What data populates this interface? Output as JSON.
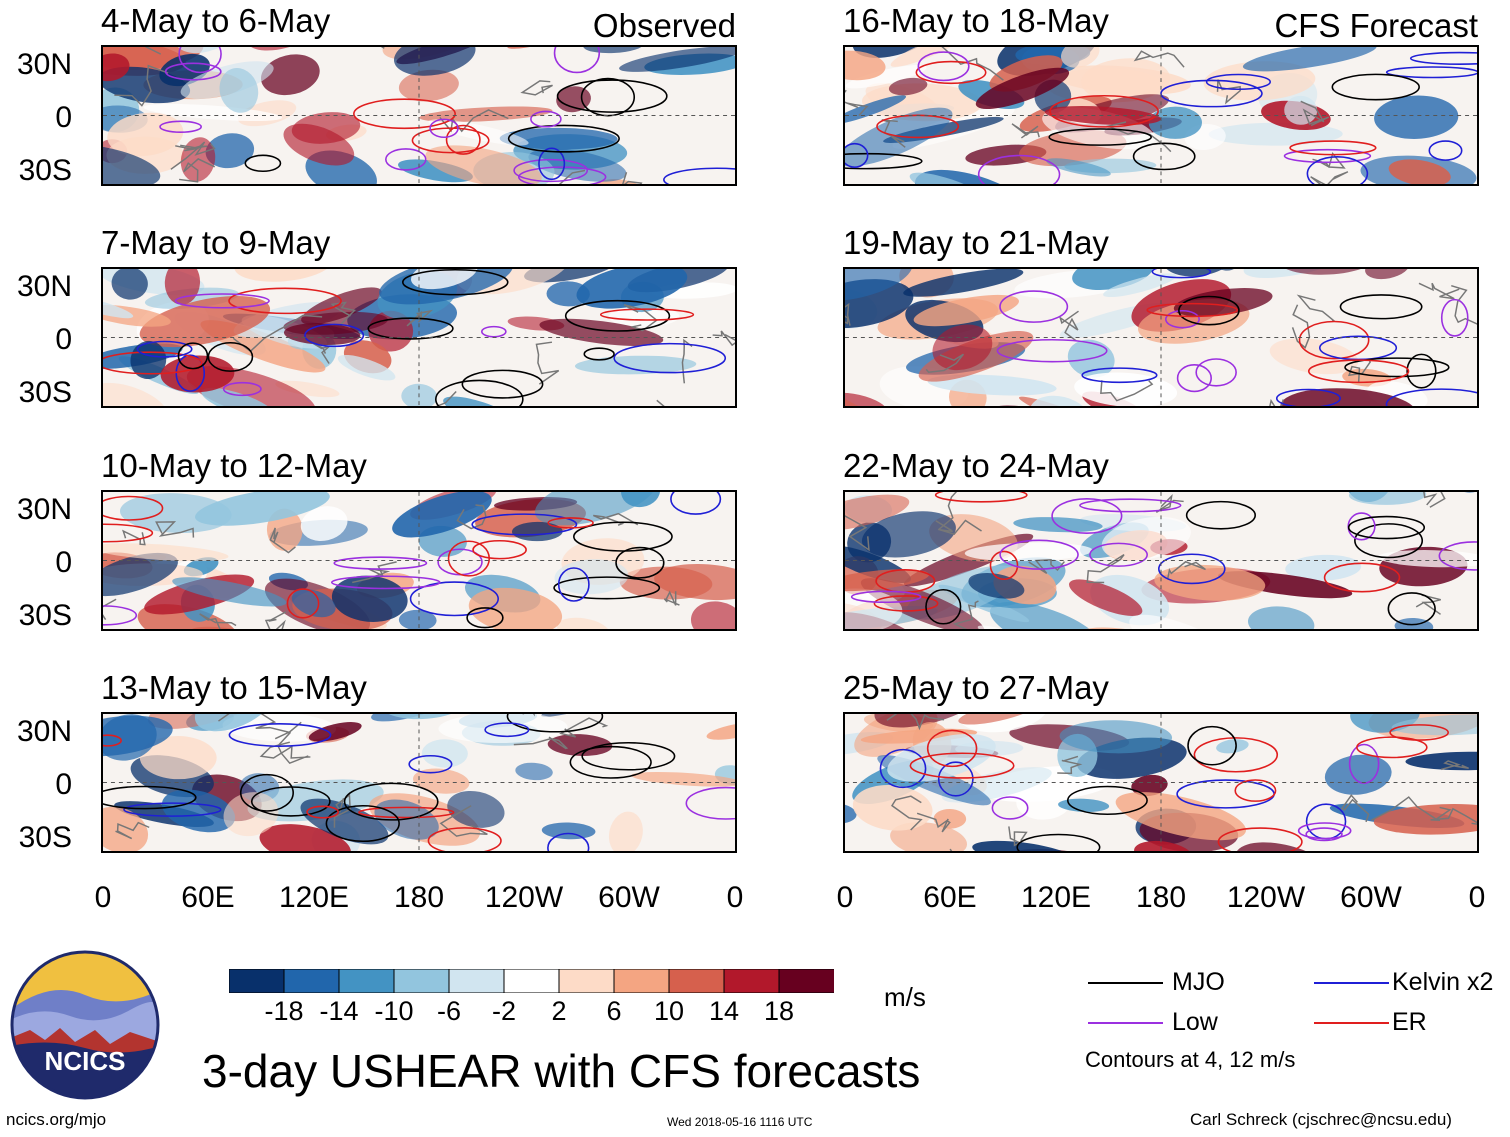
{
  "figure": {
    "title": "3-day USHEAR with CFS forecasts",
    "left_column_label": "Observed",
    "right_column_label": "CFS Forecast",
    "site": "ncics.org/mjo",
    "timestamp": "Wed 2018-05-16 1116 UTC",
    "author": "Carl Schreck (cjschrec@ncsu.edu)",
    "logo_text": "NCICS"
  },
  "panels": [
    {
      "title": "4-May to 6-May",
      "column": "observed"
    },
    {
      "title": "7-May to 9-May",
      "column": "observed"
    },
    {
      "title": "10-May to 12-May",
      "column": "observed"
    },
    {
      "title": "13-May to 15-May",
      "column": "observed"
    },
    {
      "title": "16-May to 18-May",
      "column": "forecast"
    },
    {
      "title": "19-May to 21-May",
      "column": "forecast"
    },
    {
      "title": "22-May to 24-May",
      "column": "forecast"
    },
    {
      "title": "25-May to 27-May",
      "column": "forecast"
    }
  ],
  "axes": {
    "lat_labels": [
      "30N",
      "0",
      "30S"
    ],
    "lon_labels": [
      "0",
      "60E",
      "120E",
      "180",
      "120W",
      "60W",
      "0"
    ]
  },
  "colorbar": {
    "unit": "m/s",
    "colors": [
      "#08306b",
      "#2166ac",
      "#4393c3",
      "#92c5de",
      "#d1e5f0",
      "#ffffff",
      "#fddbc7",
      "#f4a582",
      "#d6604d",
      "#b2182b",
      "#67001f"
    ],
    "labels": [
      "-18",
      "-14",
      "-10",
      "-6",
      "-2",
      "2",
      "6",
      "10",
      "14",
      "18"
    ]
  },
  "legend": {
    "items": [
      {
        "label": "MJO",
        "color": "#000000"
      },
      {
        "label": "Kelvin x2",
        "color": "#1f1fd6"
      },
      {
        "label": "Low",
        "color": "#9b30e0"
      },
      {
        "label": "ER",
        "color": "#e01e1e"
      }
    ],
    "note": "Contours at 4, 12 m/s"
  }
}
